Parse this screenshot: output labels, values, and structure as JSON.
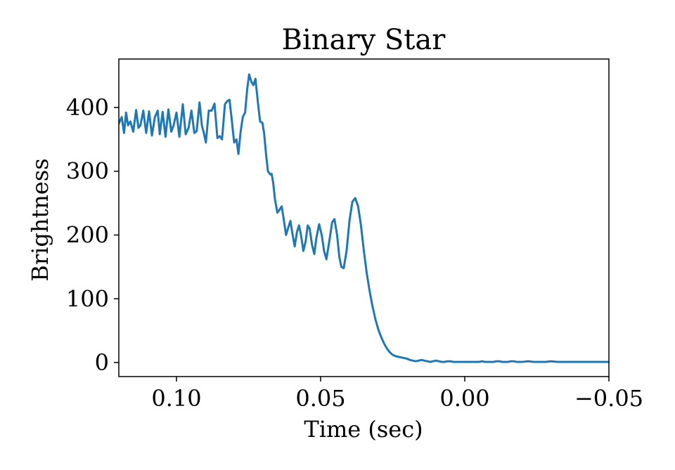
{
  "chart_data": {
    "type": "line",
    "title": "Binary Star",
    "xlabel": "Time (sec)",
    "ylabel": "Brightness",
    "xlim": [
      0.12,
      -0.05
    ],
    "ylim": [
      -22,
      476
    ],
    "x_inverted": true,
    "grid": false,
    "x_ticks": [
      {
        "value": 0.1,
        "label": "0.10"
      },
      {
        "value": 0.05,
        "label": "0.05"
      },
      {
        "value": 0.0,
        "label": "0.00"
      },
      {
        "value": -0.05,
        "label": "−0.05"
      }
    ],
    "y_ticks": [
      {
        "value": 0,
        "label": "0"
      },
      {
        "value": 100,
        "label": "100"
      },
      {
        "value": 200,
        "label": "200"
      },
      {
        "value": 300,
        "label": "300"
      },
      {
        "value": 400,
        "label": "400"
      }
    ],
    "series": [
      {
        "color": "#1f77b4",
        "points": [
          [
            0.12,
            375
          ],
          [
            0.119,
            385
          ],
          [
            0.1182,
            360
          ],
          [
            0.1175,
            392
          ],
          [
            0.1168,
            372
          ],
          [
            0.116,
            378
          ],
          [
            0.115,
            362
          ],
          [
            0.114,
            396
          ],
          [
            0.1132,
            368
          ],
          [
            0.1125,
            372
          ],
          [
            0.1115,
            395
          ],
          [
            0.1105,
            360
          ],
          [
            0.1095,
            394
          ],
          [
            0.1085,
            356
          ],
          [
            0.1075,
            385
          ],
          [
            0.1065,
            395
          ],
          [
            0.1058,
            358
          ],
          [
            0.1048,
            393
          ],
          [
            0.1038,
            354
          ],
          [
            0.1028,
            397
          ],
          [
            0.1018,
            362
          ],
          [
            0.101,
            372
          ],
          [
            0.1,
            392
          ],
          [
            0.099,
            354
          ],
          [
            0.0978,
            405
          ],
          [
            0.0968,
            358
          ],
          [
            0.0958,
            368
          ],
          [
            0.0948,
            395
          ],
          [
            0.0938,
            360
          ],
          [
            0.093,
            363
          ],
          [
            0.092,
            408
          ],
          [
            0.0912,
            372
          ],
          [
            0.0905,
            360
          ],
          [
            0.0898,
            345
          ],
          [
            0.0888,
            395
          ],
          [
            0.0878,
            395
          ],
          [
            0.0868,
            406
          ],
          [
            0.0858,
            352
          ],
          [
            0.085,
            355
          ],
          [
            0.0842,
            350
          ],
          [
            0.0832,
            405
          ],
          [
            0.0824,
            410
          ],
          [
            0.0816,
            412
          ],
          [
            0.0808,
            380
          ],
          [
            0.08,
            345
          ],
          [
            0.0792,
            350
          ],
          [
            0.0785,
            327
          ],
          [
            0.0778,
            360
          ],
          [
            0.077,
            385
          ],
          [
            0.0762,
            392
          ],
          [
            0.0755,
            428
          ],
          [
            0.0748,
            452
          ],
          [
            0.074,
            440
          ],
          [
            0.0733,
            435
          ],
          [
            0.0726,
            445
          ],
          [
            0.0718,
            410
          ],
          [
            0.071,
            378
          ],
          [
            0.0702,
            376
          ],
          [
            0.0696,
            360
          ],
          [
            0.069,
            330
          ],
          [
            0.0683,
            300
          ],
          [
            0.0675,
            295
          ],
          [
            0.067,
            296
          ],
          [
            0.0665,
            283
          ],
          [
            0.0658,
            255
          ],
          [
            0.065,
            235
          ],
          [
            0.0642,
            240
          ],
          [
            0.0635,
            245
          ],
          [
            0.0628,
            225
          ],
          [
            0.062,
            200
          ],
          [
            0.0612,
            212
          ],
          [
            0.0605,
            222
          ],
          [
            0.0598,
            203
          ],
          [
            0.059,
            182
          ],
          [
            0.0582,
            205
          ],
          [
            0.0575,
            215
          ],
          [
            0.0568,
            200
          ],
          [
            0.056,
            175
          ],
          [
            0.0552,
            190
          ],
          [
            0.0545,
            215
          ],
          [
            0.0538,
            210
          ],
          [
            0.053,
            185
          ],
          [
            0.0522,
            170
          ],
          [
            0.0515,
            195
          ],
          [
            0.0505,
            217
          ],
          [
            0.0496,
            200
          ],
          [
            0.0488,
            175
          ],
          [
            0.048,
            162
          ],
          [
            0.047,
            190
          ],
          [
            0.046,
            220
          ],
          [
            0.0452,
            225
          ],
          [
            0.0443,
            200
          ],
          [
            0.0435,
            165
          ],
          [
            0.0428,
            150
          ],
          [
            0.042,
            148
          ],
          [
            0.041,
            175
          ],
          [
            0.04,
            222
          ],
          [
            0.039,
            252
          ],
          [
            0.038,
            258
          ],
          [
            0.037,
            245
          ],
          [
            0.036,
            215
          ],
          [
            0.035,
            175
          ],
          [
            0.034,
            140
          ],
          [
            0.033,
            112
          ],
          [
            0.032,
            88
          ],
          [
            0.031,
            68
          ],
          [
            0.03,
            52
          ],
          [
            0.029,
            40
          ],
          [
            0.028,
            30
          ],
          [
            0.027,
            22
          ],
          [
            0.026,
            16
          ],
          [
            0.025,
            12
          ],
          [
            0.024,
            10
          ],
          [
            0.023,
            9
          ],
          [
            0.022,
            8
          ],
          [
            0.021,
            7
          ],
          [
            0.02,
            6
          ],
          [
            0.019,
            4
          ],
          [
            0.018,
            3
          ],
          [
            0.017,
            2
          ],
          [
            0.016,
            3
          ],
          [
            0.015,
            4
          ],
          [
            0.014,
            3
          ],
          [
            0.013,
            2
          ],
          [
            0.012,
            1
          ],
          [
            0.011,
            2
          ],
          [
            0.01,
            3
          ],
          [
            0.009,
            2
          ],
          [
            0.008,
            1
          ],
          [
            0.007,
            1
          ],
          [
            0.006,
            2
          ],
          [
            0.005,
            2
          ],
          [
            0.004,
            1
          ],
          [
            0.003,
            1
          ],
          [
            0.002,
            1
          ],
          [
            0.001,
            1
          ],
          [
            0.0,
            1
          ],
          [
            -0.001,
            1
          ],
          [
            -0.002,
            1
          ],
          [
            -0.003,
            1
          ],
          [
            -0.004,
            1
          ],
          [
            -0.005,
            1
          ],
          [
            -0.006,
            2
          ],
          [
            -0.007,
            1
          ],
          [
            -0.008,
            1
          ],
          [
            -0.009,
            1
          ],
          [
            -0.01,
            1
          ],
          [
            -0.011,
            2
          ],
          [
            -0.012,
            2
          ],
          [
            -0.013,
            1
          ],
          [
            -0.014,
            1
          ],
          [
            -0.015,
            1
          ],
          [
            -0.016,
            2
          ],
          [
            -0.017,
            2
          ],
          [
            -0.018,
            1
          ],
          [
            -0.019,
            1
          ],
          [
            -0.02,
            1
          ],
          [
            -0.022,
            2
          ],
          [
            -0.024,
            1
          ],
          [
            -0.026,
            1
          ],
          [
            -0.028,
            1
          ],
          [
            -0.03,
            2
          ],
          [
            -0.032,
            1
          ],
          [
            -0.034,
            1
          ],
          [
            -0.036,
            1
          ],
          [
            -0.038,
            1
          ],
          [
            -0.04,
            1
          ],
          [
            -0.042,
            1
          ],
          [
            -0.044,
            1
          ],
          [
            -0.046,
            1
          ],
          [
            -0.048,
            1
          ],
          [
            -0.05,
            1
          ]
        ]
      }
    ]
  }
}
